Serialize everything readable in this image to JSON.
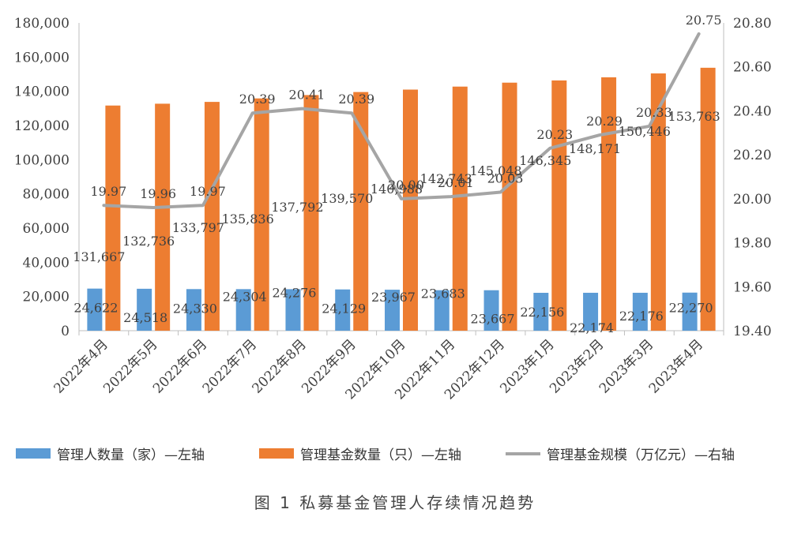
{
  "chart_data": {
    "type": "bar",
    "categories": [
      "2022年4月",
      "2022年5月",
      "2022年6月",
      "2022年7月",
      "2022年8月",
      "2022年9月",
      "2022年10月",
      "2022年11月",
      "2022年12月",
      "2023年1月",
      "2023年2月",
      "2023年3月",
      "2023年4月"
    ],
    "series": [
      {
        "name": "管理人数量（家）—左轴",
        "type": "bar",
        "axis": "left",
        "color": "#5B9BD5",
        "values": [
          24622,
          24518,
          24330,
          24304,
          24276,
          24129,
          23967,
          23683,
          23667,
          22156,
          22174,
          22176,
          22270
        ],
        "labels": [
          "24,622",
          "24,518",
          "24,330",
          "24,304",
          "24,276",
          "24,129",
          "23,967",
          "23,683",
          "23,667",
          "22,156",
          "22,174",
          "22,176",
          "22,270"
        ]
      },
      {
        "name": "管理基金数量（只）—左轴",
        "type": "bar",
        "axis": "left",
        "color": "#ED7D31",
        "values": [
          131667,
          132736,
          133797,
          135836,
          137792,
          139570,
          140988,
          142743,
          145048,
          146345,
          148171,
          150446,
          153763
        ],
        "labels": [
          "131,667",
          "132,736",
          "133,797",
          "135,836",
          "137,792",
          "139,570",
          "140,988",
          "142,743",
          "145,048",
          "146,345",
          "148,171",
          "150,446",
          "153,763"
        ]
      },
      {
        "name": "管理基金规模（万亿元）—右轴",
        "type": "line",
        "axis": "right",
        "color": "#A5A5A5",
        "values": [
          19.97,
          19.96,
          19.97,
          20.39,
          20.41,
          20.39,
          20.0,
          20.01,
          20.03,
          20.23,
          20.29,
          20.33,
          20.75
        ],
        "labels": [
          "19.97",
          "19.96",
          "19.97",
          "20.39",
          "20.41",
          "20.39",
          "20.00",
          "20.01",
          "20.03",
          "20.23",
          "20.29",
          "20.33",
          "20.75"
        ]
      }
    ],
    "y_left": {
      "min": 0,
      "max": 180000,
      "ticks": [
        "0",
        "20,000",
        "40,000",
        "60,000",
        "80,000",
        "100,000",
        "120,000",
        "140,000",
        "160,000",
        "180,000"
      ]
    },
    "y_right": {
      "min": 19.4,
      "max": 20.8,
      "ticks": [
        "19.40",
        "19.60",
        "19.80",
        "20.00",
        "20.20",
        "20.40",
        "20.60",
        "20.80"
      ]
    },
    "grid": false,
    "legend_position": "bottom"
  },
  "legend": [
    "管理人数量（家）—左轴",
    "管理基金数量（只）—左轴",
    "管理基金规模（万亿元）—右轴"
  ],
  "caption": "图 1  私募基金管理人存续情况趋势"
}
